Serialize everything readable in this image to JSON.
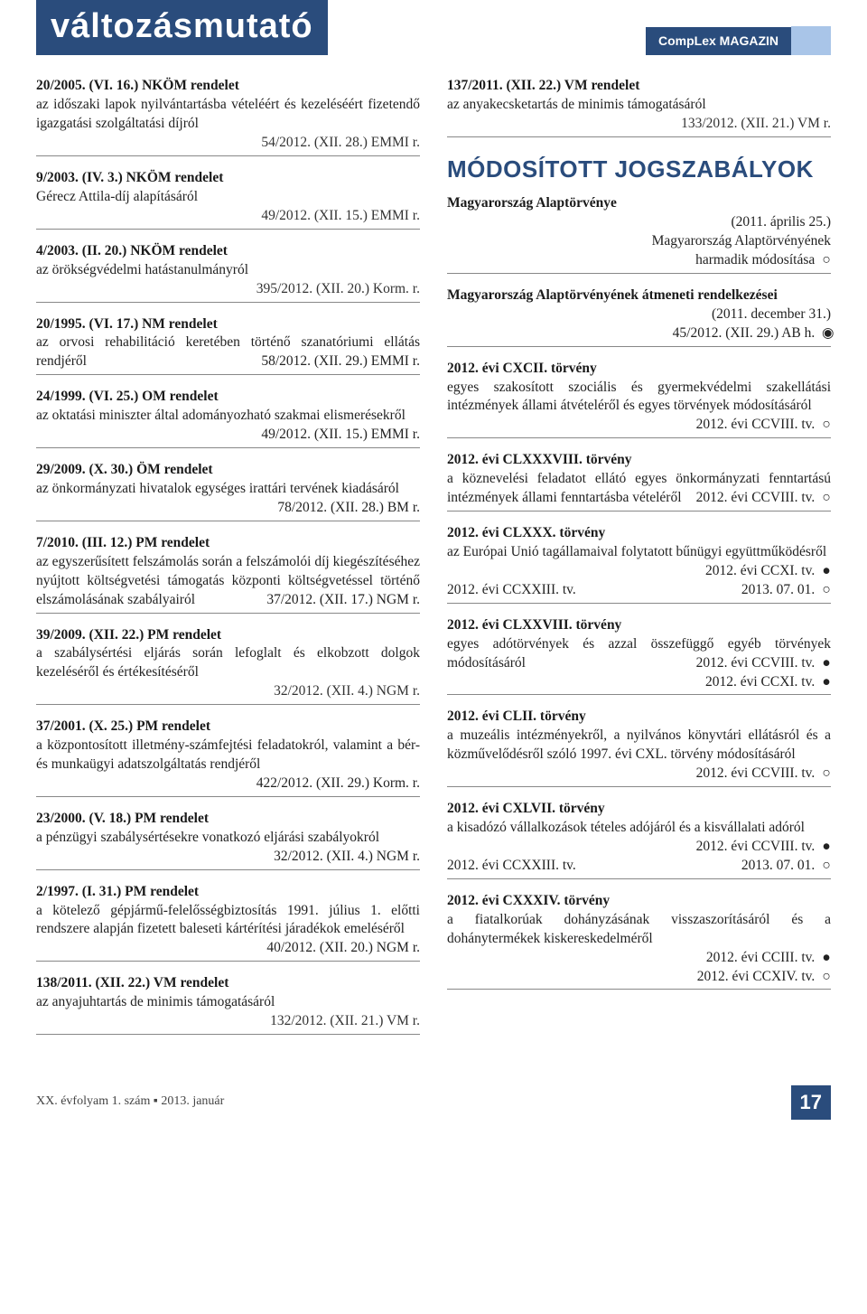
{
  "header": {
    "title": "változásmutató",
    "magazine": "CompLex MAGAZIN"
  },
  "left_col": [
    {
      "title": "20/2005. (VI. 16.) NKÖM rendelet",
      "body": "az időszaki lapok nyilvántartásba vételéért és kezelé­séért fizetendő igazgatási szolgáltatási díjról",
      "ref": "54/2012. (XII. 28.) EMMI r."
    },
    {
      "title": "9/2003. (IV. 3.) NKÖM rendelet",
      "body": "Gérecz Attila-díj alapításáról",
      "ref": "49/2012. (XII. 15.) EMMI r."
    },
    {
      "title": "4/2003. (II. 20.) NKÖM rendelet",
      "body": "az örökségvédelmi hatástanulmányról",
      "ref": "395/2012. (XII. 20.) Korm. r."
    },
    {
      "title": "20/1995. (VI. 17.) NM rendelet",
      "body_pre": "az orvosi rehabilitáció keretében történő szanatóriu­mi ellátás rendjéről",
      "ref_inline": "58/2012. (XII. 29.) EMMI r."
    },
    {
      "title": "24/1999. (VI. 25.) OM rendelet",
      "body_pre": "az oktatási miniszter által adományozható szakmai elismerésekről",
      "ref_inline": "49/2012. (XII. 15.) EMMI r."
    },
    {
      "title": "29/2009. (X. 30.) ÖM rendelet",
      "body_pre": "az önkormányzati hivatalok egységes irattári tervének kiadásáról",
      "ref_inline": "78/2012. (XII. 28.) BM r."
    },
    {
      "title": "7/2010. (III. 12.) PM rendelet",
      "body_pre": "az egyszerűsített felszámolás során a felszámolói díj kiegészítéséhez nyújtott költségvetési támogatás központi költségvetéssel történő elszámolásának sza­bályairól",
      "ref_inline": "37/2012. (XII. 17.) NGM r."
    },
    {
      "title": "39/2009. (XII. 22.) PM rendelet",
      "body": "a szabálysértési eljárás során lefoglalt és elkobzott dolgok kezeléséről és értékesítéséről",
      "ref": "32/2012. (XII. 4.) NGM r."
    },
    {
      "title": "37/2001. (X. 25.) PM rendelet",
      "body_pre": "a központosított illetmény-számfejtési feladatokról, valamint a bér- és munkaügyi adatszolgáltatás rend­jéről",
      "ref_inline": "422/2012. (XII. 29.) Korm. r."
    },
    {
      "title": "23/2000. (V. 18.) PM rendelet",
      "body_pre": "a pénzügyi szabálysértésekre vonatkozó eljárási sza­bályokról",
      "ref_inline": "32/2012. (XII. 4.) NGM r."
    },
    {
      "title": "2/1997. (I. 31.) PM rendelet",
      "body_pre": "a kötelező gépjármű-felelősségbiztosítás 1991. július 1. előtti rendszere alapján fizetett baleseti kártérítési járadékok emeléséről",
      "ref_inline": "40/2012. (XII. 20.) NGM r."
    },
    {
      "title": "138/2011. (XII. 22.) VM rendelet",
      "body": "az anyajuhtartás de minimis támogatásáról",
      "ref": "132/2012. (XII. 21.) VM r."
    }
  ],
  "right_top": {
    "title": "137/2011. (XII. 22.) VM rendelet",
    "body": "az anyakecsketartás de minimis támogatásáról",
    "ref": "133/2012. (XII. 21.) VM r."
  },
  "mod_heading": "MÓDOSÍTOTT JOGSZABÁLYOK",
  "right_col": [
    {
      "title": "Magyarország Alaptörvénye",
      "lines": [
        {
          "t": "(2011. április 25.)",
          "m": ""
        },
        {
          "t": "Magyarország Alaptörvényének",
          "m": ""
        },
        {
          "t": "harmadik módosítása",
          "m": "○"
        }
      ]
    },
    {
      "title": "Magyarország Alaptörvényének átmeneti ren­delkezései",
      "lines": [
        {
          "t": "(2011. december 31.)",
          "m": ""
        },
        {
          "t": "45/2012. (XII. 29.) AB h.",
          "m": "◉"
        }
      ]
    },
    {
      "title": "2012. évi CXCII. törvény",
      "body_pre": "egyes szakosított szociális és gyermekvédelmi szakel­látási intézmények állami átvételéről és egyes törvé­nyek módosításáról",
      "ref_inline": "2012. évi CCVIII. tv.",
      "m": "○"
    },
    {
      "title": "2012. évi CLXXXVIII. törvény",
      "body_pre": "a köznevelési feladatot ellátó egyes önkormányzati fenntartású intézmények állami fenntartásba véte­léről",
      "ref_inline": "2012. évi CCVIII. tv.",
      "m": "○"
    },
    {
      "title": "2012. évi CLXXX. törvény",
      "body_pre": "az Európai Unió tagállamaival folytatott bűnügyi együttműködésről",
      "ref_inline": "2012. évi CCXI. tv.",
      "m": "●",
      "extra": [
        {
          "l": "2012. évi CCXXIII. tv.",
          "r": "2013. 07. 01.",
          "m": "○"
        }
      ]
    },
    {
      "title": "2012. évi CLXXVIII. törvény",
      "body_pre": "egyes adótörvények és azzal összefüggő egyéb törvé­nyek módosításáról",
      "ref_inline": "2012. évi CCVIII. tv.",
      "m": "●",
      "extra": [
        {
          "l": "",
          "r": "2012. évi CCXI. tv.",
          "m": "●"
        }
      ]
    },
    {
      "title": "2012. évi CLII. törvény",
      "body_pre": "a muzeális intézményekről, a nyilvános könyvtári ellá­tásról és a közművelődésről szóló 1997. évi CXL. tör­vény módosításáról",
      "ref_inline": "2012. évi CCVIII. tv.",
      "m": "○"
    },
    {
      "title": "2012. évi CXLVII. törvény",
      "body_pre": "a kisadózó vállalkozások tételes adójáról és a kisválla­lati adóról",
      "ref_inline": "2012. évi CCVIII. tv.",
      "m": "●",
      "extra": [
        {
          "l": "2012. évi CCXXIII. tv.",
          "r": "2013. 07. 01.",
          "m": "○"
        }
      ]
    },
    {
      "title": "2012. évi CXXXIV. törvény",
      "body": "a fiatalkorúak dohányzásának visszaszorításáról és a dohánytermékek kiskereskedelméről",
      "lines": [
        {
          "t": "2012. évi CCIII. tv.",
          "m": "●"
        },
        {
          "t": "2012. évi CCXIV. tv.",
          "m": "○"
        }
      ]
    }
  ],
  "footer": {
    "left": "XX. évfolyam 1. szám ▪ 2013. január",
    "page": "17"
  },
  "colors": {
    "primary": "#2a4c7c",
    "light": "#a9c5e8"
  }
}
